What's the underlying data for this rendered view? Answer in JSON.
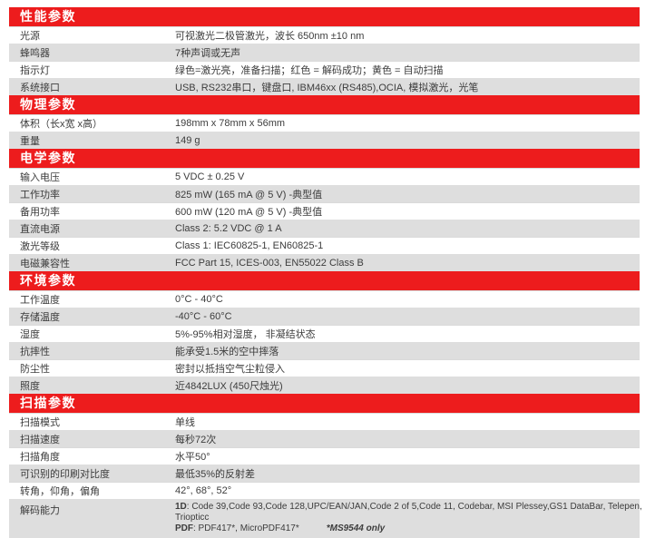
{
  "theme": {
    "header_bg": "#ed1c1d",
    "header_text": "#ffffff",
    "row_alt_bg": "#dedede",
    "row_bg": "#ffffff",
    "text_color": "#3c3c3c"
  },
  "sections": [
    {
      "title": "性能参数",
      "rows": [
        {
          "label": "光源",
          "value": "可视激光二极管激光，波长 650nm ±10 nm"
        },
        {
          "label": "蜂鸣器",
          "value": "7种声调或无声"
        },
        {
          "label": "指示灯",
          "value": "绿色=激光亮，准备扫描；红色 = 解码成功；黄色 = 自动扫描"
        },
        {
          "label": "系统接口",
          "value": "USB, RS232串口，键盘口, IBM46xx (RS485),OCIA, 模拟激光，光笔"
        }
      ]
    },
    {
      "title": "物理参数",
      "rows": [
        {
          "label": "体积（长x宽 x高）",
          "value": "198mm x 78mm x 56mm"
        },
        {
          "label": "重量",
          "value": "149 g"
        }
      ]
    },
    {
      "title": "电学参数",
      "rows": [
        {
          "label": "输入电压",
          "value": "5 VDC ± 0.25 V"
        },
        {
          "label": "工作功率",
          "value": "825 mW (165 mA @ 5 V) -典型值"
        },
        {
          "label": "备用功率",
          "value": "600 mW (120 mA @ 5 V) -典型值"
        },
        {
          "label": "直流电源",
          "value": "Class 2: 5.2 VDC @ 1 A"
        },
        {
          "label": "激光等级",
          "value": "Class 1: IEC60825-1, EN60825-1"
        },
        {
          "label": "电磁兼容性",
          "value": "FCC Part 15, ICES-003, EN55022 Class B"
        }
      ]
    },
    {
      "title": "环境参数",
      "rows": [
        {
          "label": "工作温度",
          "value": "0°C  - 40°C"
        },
        {
          "label": "存储温度",
          "value": "-40°C - 60°C"
        },
        {
          "label": "湿度",
          "value": "5%-95%相对湿度， 非凝结状态"
        },
        {
          "label": "抗摔性",
          "value": "能承受1.5米的空中摔落"
        },
        {
          "label": "防尘性",
          "value": "密封以抵挡空气尘粒侵入"
        },
        {
          "label": "照度",
          "value": "近4842LUX (450尺烛光)"
        }
      ]
    },
    {
      "title": "扫描参数",
      "rows": [
        {
          "label": "扫描模式",
          "value": "单线"
        },
        {
          "label": "扫描速度",
          "value": "每秒72次"
        },
        {
          "label": "扫描角度",
          "value": "水平50°"
        },
        {
          "label": "可识别的印刷对比度",
          "value": "最低35%的反射差"
        },
        {
          "label": "转角，仰角，偏角",
          "value": "42°, 68°, 52°"
        },
        {
          "label": "解码能力",
          "value_lines": [
            [
              {
                "t": "1D",
                "b": true
              },
              {
                "t": ": Code 39,Code 93,Code 128,UPC/EAN/JAN,Code 2 of 5,Code 11, Codebar, MSI Plessey,GS1 DataBar, Telepen,"
              }
            ],
            [
              {
                "t": "Triopticc"
              }
            ],
            [
              {
                "t": "PDF",
                "b": true
              },
              {
                "t": ": PDF417*, MicroPDF417*"
              },
              {
                "t": "*MS9544 only",
                "b": true,
                "i": true,
                "gap": true
              }
            ]
          ]
        }
      ]
    }
  ]
}
